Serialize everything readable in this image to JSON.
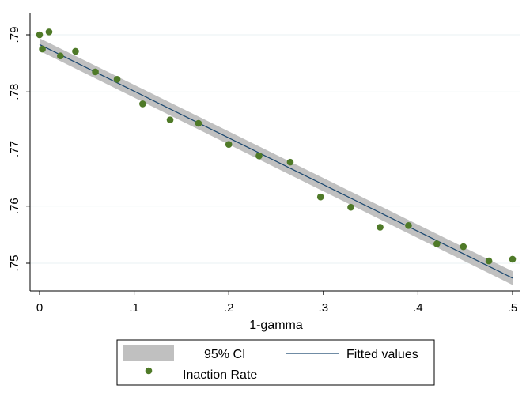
{
  "chart_data": {
    "type": "scatter",
    "title": "",
    "xlabel": "1-gamma",
    "ylabel": "",
    "xlim": [
      0,
      0.5
    ],
    "ylim": [
      0.745,
      0.79
    ],
    "x_ticks": [
      0,
      0.1,
      0.2,
      0.3,
      0.4,
      0.5
    ],
    "x_tick_labels": [
      "0",
      ".1",
      ".2",
      ".3",
      ".4",
      ".5"
    ],
    "y_ticks": [
      0.75,
      0.76,
      0.77,
      0.78,
      0.79
    ],
    "y_tick_labels": [
      ".75",
      ".76",
      ".77",
      ".78",
      ".79"
    ],
    "grid": "horizontal",
    "legend_position": "bottom",
    "series": [
      {
        "name": "Inaction Rate",
        "kind": "scatter",
        "color": "#4f7a28",
        "x": [
          0,
          0.003,
          0.01,
          0.022,
          0.038,
          0.059,
          0.082,
          0.109,
          0.138,
          0.168,
          0.2,
          0.232,
          0.265,
          0.297,
          0.329,
          0.36,
          0.39,
          0.42,
          0.448,
          0.475,
          0.5
        ],
        "y": [
          0.79,
          0.7875,
          0.7905,
          0.7863,
          0.7871,
          0.7835,
          0.7822,
          0.7779,
          0.7751,
          0.7745,
          0.7708,
          0.7688,
          0.7677,
          0.7616,
          0.7598,
          0.7563,
          0.7566,
          0.7534,
          0.7529,
          0.7504,
          0.7507
        ]
      },
      {
        "name": "Fitted values",
        "kind": "line",
        "color": "#1a476f",
        "x": [
          0,
          0.5
        ],
        "y": [
          0.7883,
          0.7474
        ]
      },
      {
        "name": "95% CI",
        "kind": "band",
        "color": "#c0c0c0",
        "x": [
          0,
          0.5
        ],
        "y_lower": [
          0.7872,
          0.7462
        ],
        "y_upper": [
          0.7894,
          0.7486
        ]
      }
    ]
  }
}
